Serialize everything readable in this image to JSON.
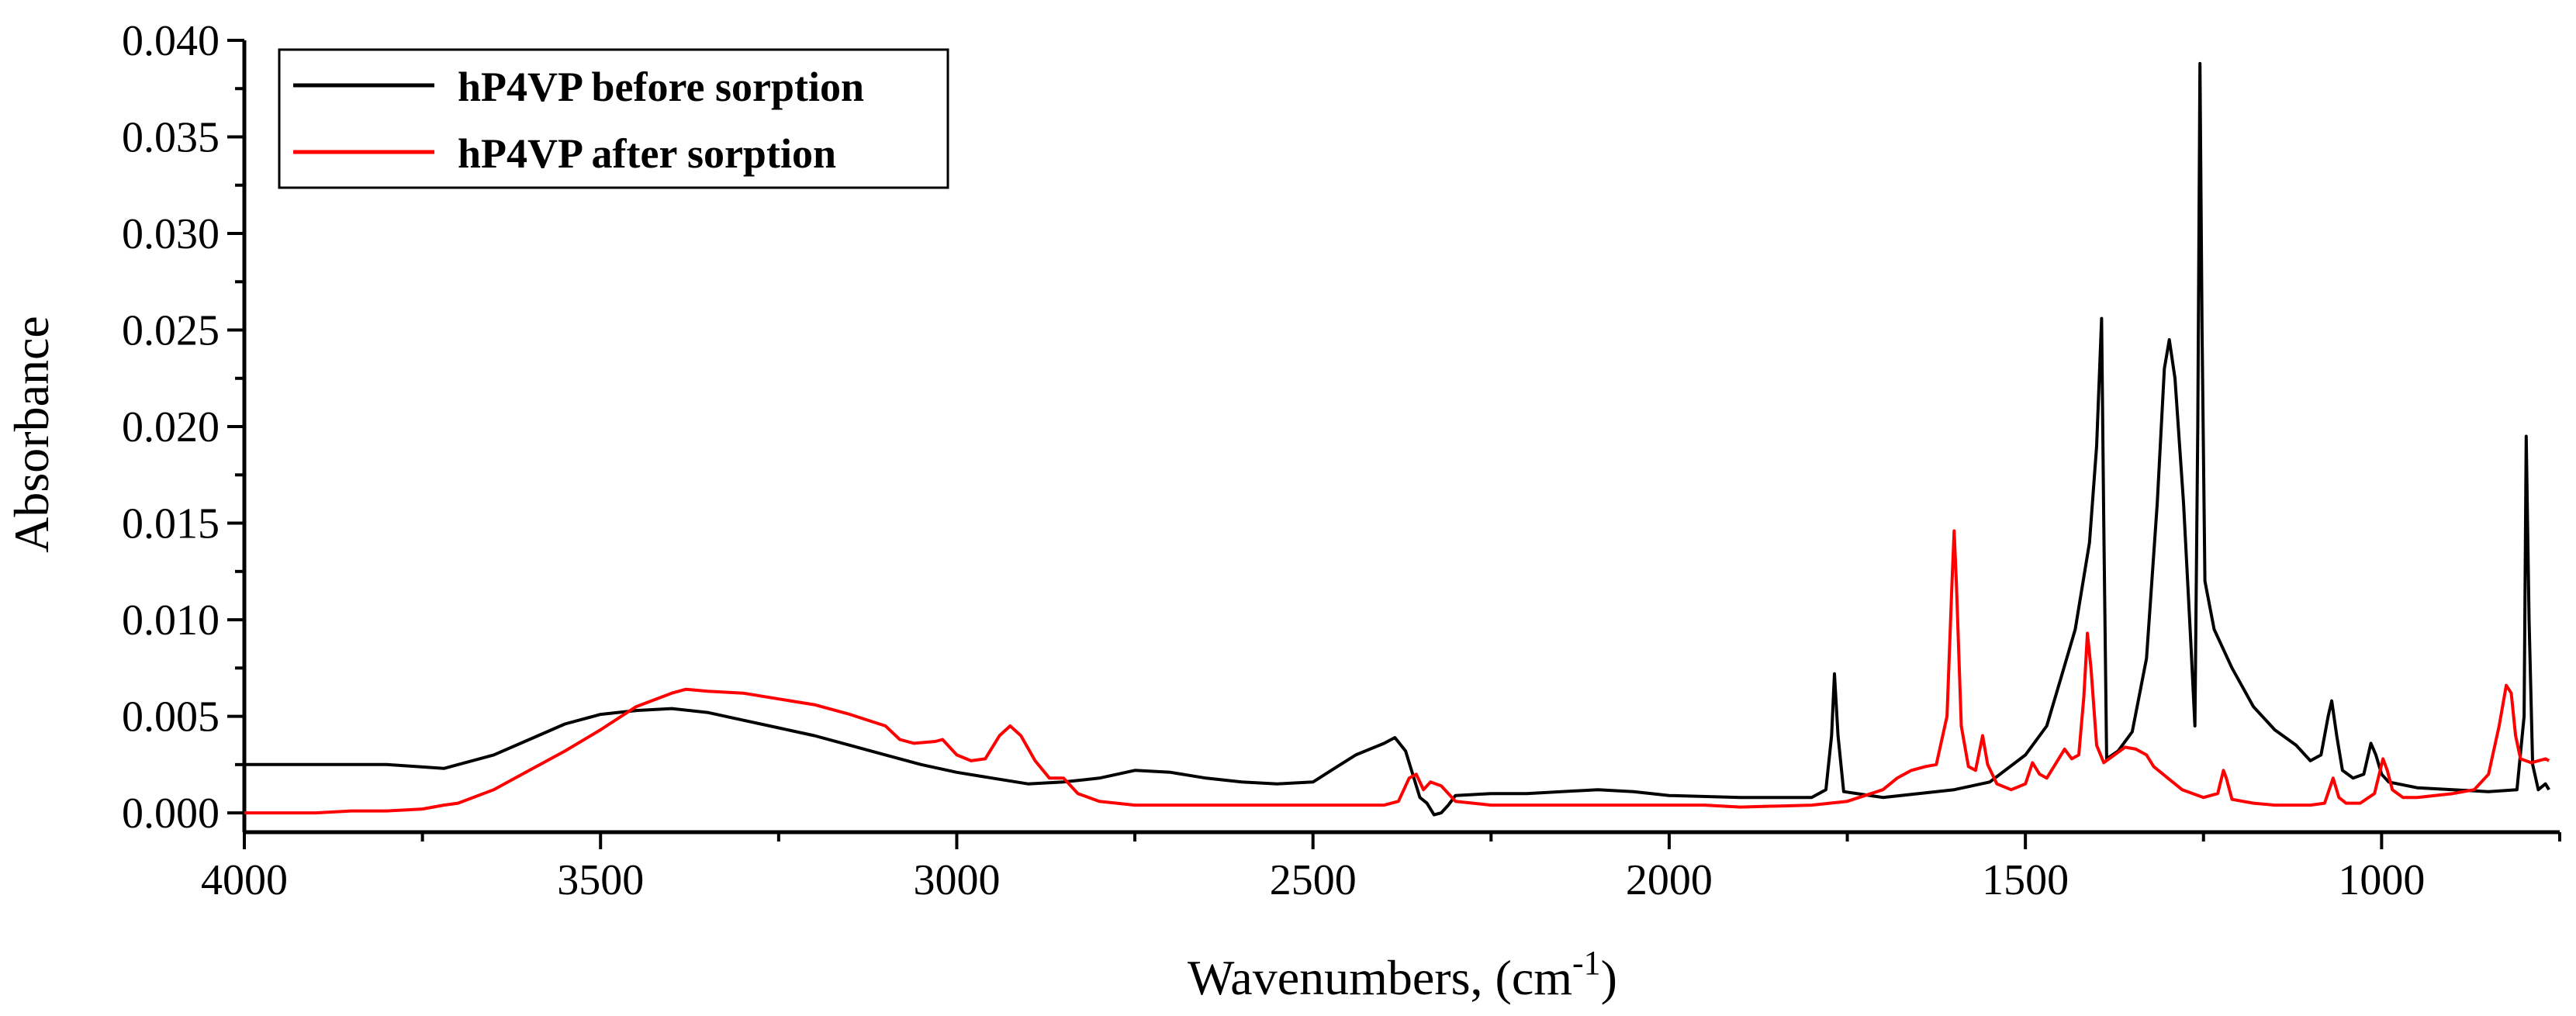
{
  "chart_data": {
    "type": "line",
    "title": "",
    "xlabel": "Wavenumbers, (cm",
    "xlabel_sup": "-1",
    "xlabel_suffix": ")",
    "ylabel": "Absorbance",
    "xlim": [
      4000,
      750
    ],
    "ylim": [
      -0.001,
      0.04
    ],
    "x_direction": "reversed",
    "x_ticks": [
      4000,
      3500,
      3000,
      2500,
      2000,
      1500,
      1000
    ],
    "x_tick_labels": [
      "4000",
      "3500",
      "3000",
      "2500",
      "2000",
      "1500",
      "1000"
    ],
    "y_ticks": [
      0.0,
      0.005,
      0.01,
      0.015,
      0.02,
      0.025,
      0.03,
      0.035,
      0.04
    ],
    "y_tick_labels": [
      "0.000",
      "0.005",
      "0.010",
      "0.015",
      "0.020",
      "0.025",
      "0.030",
      "0.035",
      "0.040"
    ],
    "grid": false,
    "legend_position": "top-left",
    "series": [
      {
        "name": "hP4VP before sorption",
        "color": "#000000",
        "points": [
          [
            4000,
            0.0025
          ],
          [
            3900,
            0.0025
          ],
          [
            3800,
            0.0025
          ],
          [
            3720,
            0.0023
          ],
          [
            3650,
            0.003
          ],
          [
            3600,
            0.0038
          ],
          [
            3550,
            0.0046
          ],
          [
            3500,
            0.0051
          ],
          [
            3450,
            0.0053
          ],
          [
            3400,
            0.0054
          ],
          [
            3350,
            0.0052
          ],
          [
            3300,
            0.0048
          ],
          [
            3250,
            0.0044
          ],
          [
            3200,
            0.004
          ],
          [
            3150,
            0.0035
          ],
          [
            3100,
            0.003
          ],
          [
            3050,
            0.0025
          ],
          [
            3000,
            0.0021
          ],
          [
            2950,
            0.0018
          ],
          [
            2900,
            0.0015
          ],
          [
            2850,
            0.0016
          ],
          [
            2800,
            0.0018
          ],
          [
            2750,
            0.0022
          ],
          [
            2700,
            0.0021
          ],
          [
            2650,
            0.0018
          ],
          [
            2600,
            0.0016
          ],
          [
            2550,
            0.0015
          ],
          [
            2500,
            0.0016
          ],
          [
            2470,
            0.0023
          ],
          [
            2440,
            0.003
          ],
          [
            2400,
            0.0036
          ],
          [
            2385,
            0.0039
          ],
          [
            2370,
            0.0032
          ],
          [
            2360,
            0.002
          ],
          [
            2350,
            0.0008
          ],
          [
            2340,
            0.0005
          ],
          [
            2330,
            -0.0001
          ],
          [
            2320,
            0.0
          ],
          [
            2310,
            0.0004
          ],
          [
            2300,
            0.0009
          ],
          [
            2250,
            0.001
          ],
          [
            2200,
            0.001
          ],
          [
            2100,
            0.0012
          ],
          [
            2050,
            0.0011
          ],
          [
            2000,
            0.0009
          ],
          [
            1900,
            0.0008
          ],
          [
            1800,
            0.0008
          ],
          [
            1780,
            0.0012
          ],
          [
            1772,
            0.004
          ],
          [
            1768,
            0.0072
          ],
          [
            1763,
            0.004
          ],
          [
            1755,
            0.0011
          ],
          [
            1700,
            0.0008
          ],
          [
            1650,
            0.001
          ],
          [
            1600,
            0.0012
          ],
          [
            1550,
            0.0016
          ],
          [
            1500,
            0.003
          ],
          [
            1470,
            0.0045
          ],
          [
            1450,
            0.007
          ],
          [
            1430,
            0.0095
          ],
          [
            1410,
            0.014
          ],
          [
            1400,
            0.019
          ],
          [
            1393,
            0.0256
          ],
          [
            1390,
            0.015
          ],
          [
            1386,
            0.0028
          ],
          [
            1370,
            0.0032
          ],
          [
            1350,
            0.0042
          ],
          [
            1330,
            0.008
          ],
          [
            1315,
            0.016
          ],
          [
            1305,
            0.023
          ],
          [
            1298,
            0.0245
          ],
          [
            1290,
            0.0225
          ],
          [
            1278,
            0.016
          ],
          [
            1268,
            0.009
          ],
          [
            1262,
            0.0045
          ],
          [
            1258,
            0.02
          ],
          [
            1255,
            0.0388
          ],
          [
            1252,
            0.025
          ],
          [
            1248,
            0.012
          ],
          [
            1235,
            0.0095
          ],
          [
            1210,
            0.0075
          ],
          [
            1180,
            0.0055
          ],
          [
            1150,
            0.0043
          ],
          [
            1120,
            0.0035
          ],
          [
            1100,
            0.0027
          ],
          [
            1085,
            0.003
          ],
          [
            1075,
            0.005
          ],
          [
            1070,
            0.0058
          ],
          [
            1063,
            0.004
          ],
          [
            1055,
            0.0022
          ],
          [
            1040,
            0.0018
          ],
          [
            1025,
            0.002
          ],
          [
            1015,
            0.0036
          ],
          [
            1008,
            0.003
          ],
          [
            1000,
            0.002
          ],
          [
            990,
            0.0016
          ],
          [
            950,
            0.0013
          ],
          [
            900,
            0.0012
          ],
          [
            850,
            0.0011
          ],
          [
            810,
            0.0012
          ],
          [
            800,
            0.005
          ],
          [
            797,
            0.0195
          ],
          [
            793,
            0.01
          ],
          [
            788,
            0.0025
          ],
          [
            780,
            0.0012
          ],
          [
            770,
            0.0015
          ],
          [
            765,
            0.0012
          ]
        ]
      },
      {
        "name": "hP4VP after sorption",
        "color": "#ff0000",
        "points": [
          [
            4000,
            0.0
          ],
          [
            3900,
            0.0
          ],
          [
            3850,
            0.0001
          ],
          [
            3800,
            0.0001
          ],
          [
            3750,
            0.0002
          ],
          [
            3720,
            0.0004
          ],
          [
            3700,
            0.0005
          ],
          [
            3650,
            0.0012
          ],
          [
            3600,
            0.0022
          ],
          [
            3550,
            0.0032
          ],
          [
            3500,
            0.0043
          ],
          [
            3450,
            0.0055
          ],
          [
            3400,
            0.0062
          ],
          [
            3380,
            0.0064
          ],
          [
            3350,
            0.0063
          ],
          [
            3300,
            0.0062
          ],
          [
            3250,
            0.0059
          ],
          [
            3200,
            0.0056
          ],
          [
            3150,
            0.0051
          ],
          [
            3100,
            0.0045
          ],
          [
            3080,
            0.0038
          ],
          [
            3060,
            0.0036
          ],
          [
            3030,
            0.0037
          ],
          [
            3020,
            0.0038
          ],
          [
            3000,
            0.003
          ],
          [
            2980,
            0.0027
          ],
          [
            2960,
            0.0028
          ],
          [
            2940,
            0.004
          ],
          [
            2925,
            0.0045
          ],
          [
            2910,
            0.004
          ],
          [
            2890,
            0.0027
          ],
          [
            2870,
            0.0018
          ],
          [
            2850,
            0.0018
          ],
          [
            2830,
            0.001
          ],
          [
            2800,
            0.0006
          ],
          [
            2750,
            0.0004
          ],
          [
            2700,
            0.0004
          ],
          [
            2600,
            0.0004
          ],
          [
            2500,
            0.0004
          ],
          [
            2400,
            0.0004
          ],
          [
            2380,
            0.0006
          ],
          [
            2365,
            0.0018
          ],
          [
            2355,
            0.002
          ],
          [
            2345,
            0.0012
          ],
          [
            2335,
            0.0016
          ],
          [
            2320,
            0.0014
          ],
          [
            2300,
            0.0006
          ],
          [
            2250,
            0.0004
          ],
          [
            2200,
            0.0004
          ],
          [
            2100,
            0.0004
          ],
          [
            2000,
            0.0004
          ],
          [
            1950,
            0.0004
          ],
          [
            1900,
            0.0003
          ],
          [
            1800,
            0.0004
          ],
          [
            1750,
            0.0006
          ],
          [
            1700,
            0.0012
          ],
          [
            1680,
            0.0018
          ],
          [
            1660,
            0.0022
          ],
          [
            1640,
            0.0024
          ],
          [
            1625,
            0.0025
          ],
          [
            1610,
            0.005
          ],
          [
            1603,
            0.012
          ],
          [
            1600,
            0.0146
          ],
          [
            1597,
            0.012
          ],
          [
            1590,
            0.0045
          ],
          [
            1580,
            0.0024
          ],
          [
            1570,
            0.0022
          ],
          [
            1560,
            0.004
          ],
          [
            1553,
            0.0025
          ],
          [
            1540,
            0.0015
          ],
          [
            1520,
            0.0012
          ],
          [
            1500,
            0.0015
          ],
          [
            1490,
            0.0026
          ],
          [
            1480,
            0.002
          ],
          [
            1470,
            0.0018
          ],
          [
            1455,
            0.0027
          ],
          [
            1445,
            0.0033
          ],
          [
            1435,
            0.0028
          ],
          [
            1425,
            0.003
          ],
          [
            1418,
            0.006
          ],
          [
            1413,
            0.0093
          ],
          [
            1408,
            0.0075
          ],
          [
            1400,
            0.0035
          ],
          [
            1390,
            0.0026
          ],
          [
            1375,
            0.003
          ],
          [
            1360,
            0.0034
          ],
          [
            1345,
            0.0033
          ],
          [
            1330,
            0.003
          ],
          [
            1320,
            0.0024
          ],
          [
            1300,
            0.0018
          ],
          [
            1280,
            0.0012
          ],
          [
            1250,
            0.0008
          ],
          [
            1230,
            0.001
          ],
          [
            1222,
            0.0022
          ],
          [
            1218,
            0.0018
          ],
          [
            1210,
            0.0007
          ],
          [
            1180,
            0.0005
          ],
          [
            1150,
            0.0004
          ],
          [
            1100,
            0.0004
          ],
          [
            1080,
            0.0005
          ],
          [
            1068,
            0.0018
          ],
          [
            1060,
            0.0008
          ],
          [
            1050,
            0.0005
          ],
          [
            1030,
            0.0005
          ],
          [
            1010,
            0.001
          ],
          [
            998,
            0.0028
          ],
          [
            992,
            0.0022
          ],
          [
            985,
            0.0012
          ],
          [
            970,
            0.0008
          ],
          [
            950,
            0.0008
          ],
          [
            900,
            0.001
          ],
          [
            870,
            0.0012
          ],
          [
            850,
            0.002
          ],
          [
            835,
            0.0045
          ],
          [
            825,
            0.0066
          ],
          [
            818,
            0.0062
          ],
          [
            812,
            0.004
          ],
          [
            805,
            0.0028
          ],
          [
            790,
            0.0026
          ],
          [
            770,
            0.0028
          ],
          [
            765,
            0.0027
          ]
        ]
      }
    ]
  }
}
